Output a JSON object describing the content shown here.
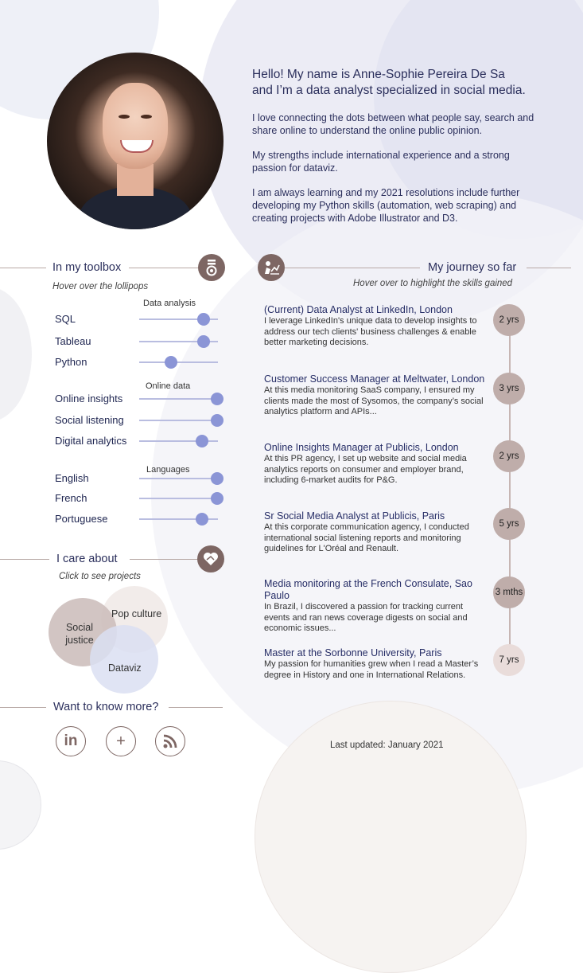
{
  "intro": {
    "hello_line1": "Hello! My name is Anne-Sophie Pereira De Sa",
    "hello_line2": "and I’m a data analyst specialized in social media.",
    "p1": "I love connecting the dots between what people say, search and share online to understand the online public opinion.",
    "p2": "My strengths include international experience and a strong passion for dataviz.",
    "p3": "I am always learning and my 2021 resolutions include further developing my Python skills (automation, web scraping) and creating projects with Adobe Illustrator and D3."
  },
  "toolbox": {
    "title": "In my toolbox",
    "hint": "Hover over the lollipops",
    "icon": "medal-icon",
    "groups": [
      {
        "label": "Data analysis",
        "skills": [
          {
            "name": "SQL",
            "level": 0.82
          },
          {
            "name": "Tableau",
            "level": 0.82
          },
          {
            "name": "Python",
            "level": 0.4
          }
        ]
      },
      {
        "label": "Online data",
        "skills": [
          {
            "name": "Online insights",
            "level": 0.99
          },
          {
            "name": "Social listening",
            "level": 0.99
          },
          {
            "name": "Digital analytics",
            "level": 0.8
          }
        ]
      },
      {
        "label": "Languages",
        "skills": [
          {
            "name": "English",
            "level": 0.99
          },
          {
            "name": "French",
            "level": 0.99
          },
          {
            "name": "Portuguese",
            "level": 0.8
          }
        ]
      }
    ],
    "colors": {
      "dot": "#8b95d6",
      "track": "#b9bde0"
    }
  },
  "care": {
    "title": "I care about",
    "hint": "Click to see projects",
    "icon": "heart-hands-icon",
    "items": [
      "Social justice",
      "Pop culture",
      "Dataviz"
    ]
  },
  "more": {
    "title": "Want to know more?",
    "links": [
      {
        "label": "in",
        "icon": "linkedin-icon"
      },
      {
        "label": "+",
        "icon": "tableau-icon"
      },
      {
        "label": "rss",
        "icon": "rss-icon"
      }
    ]
  },
  "journey": {
    "title": "My journey so far",
    "hint": "Hover over to highlight the skills gained",
    "icon": "person-chart-icon",
    "jobs": [
      {
        "title": "(Current) Data Analyst at LinkedIn, London",
        "desc": "I leverage LinkedIn's unique data to develop insights to address our tech clients' business challenges & enable better marketing decisions.",
        "duration": "2 yrs"
      },
      {
        "title": "Customer Success Manager at Meltwater, London",
        "desc": "At this media monitoring SaaS company, I ensured my clients made the most of Sysomos, the company’s social analytics platform and APIs...",
        "duration": "3 yrs"
      },
      {
        "title": "Online Insights Manager at Publicis, London",
        "desc": "At this PR agency, I set up website and social media analytics reports on consumer and employer brand, including 6-market audits for P&G.",
        "duration": "2 yrs"
      },
      {
        "title": "Sr Social Media Analyst at Publicis, Paris",
        "desc": "At this corporate communication agency, I conducted international social listening reports and monitoring guidelines for L'Oréal and Renault.",
        "duration": "5 yrs"
      },
      {
        "title": "Media monitoring at the French Consulate, Sao Paulo",
        "desc": "In Brazil, I discovered a passion for tracking current events and ran news coverage digests on social and economic issues...",
        "duration": "3 mths"
      },
      {
        "title": "Master at the Sorbonne University, Paris",
        "desc": "My passion for humanities grew when I read a Master’s degree in History and one in International Relations.",
        "duration": "7 yrs"
      }
    ]
  },
  "footer": {
    "updated": "Last updated: January 2021"
  }
}
